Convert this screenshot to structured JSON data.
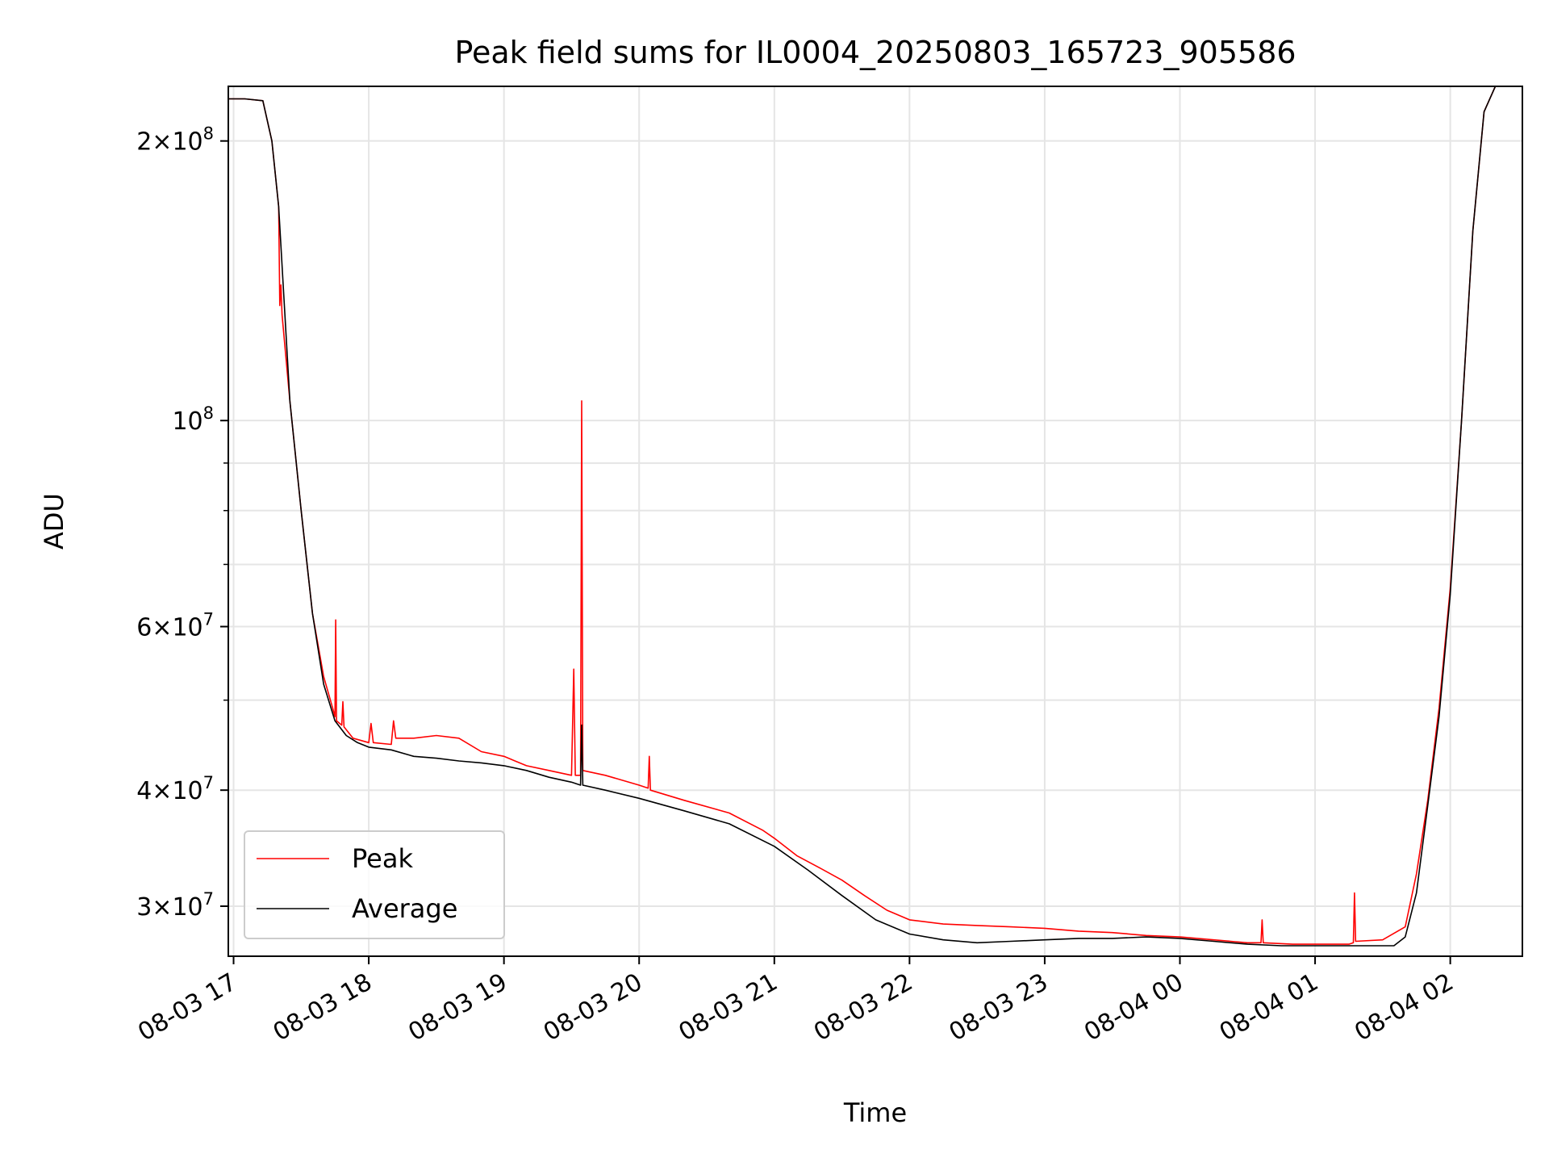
{
  "chart_data": {
    "type": "line",
    "title": "Peak field sums for IL0004_20250803_165723_905586",
    "xlabel": "Time",
    "ylabel": "ADU",
    "yscale": "log",
    "ylim": [
      26500000,
      229000000
    ],
    "xlim": [
      "2025-08-03 16:57:40",
      "2025-08-04 02:32:00"
    ],
    "x_ticks": [
      "2025-08-03 17:00",
      "2025-08-03 18:00",
      "2025-08-03 19:00",
      "2025-08-03 20:00",
      "2025-08-03 21:00",
      "2025-08-03 22:00",
      "2025-08-03 23:00",
      "2025-08-04 00:00",
      "2025-08-04 01:00",
      "2025-08-04 02:00"
    ],
    "x_tick_labels": [
      "08-03 17",
      "08-03 18",
      "08-03 19",
      "08-03 20",
      "08-03 21",
      "08-03 22",
      "08-03 23",
      "08-04 00",
      "08-04 01",
      "08-04 02"
    ],
    "y_ticks": [
      {
        "value": 200000000,
        "mantissa": "2",
        "exp": "8"
      },
      {
        "value": 100000000,
        "mantissa": "",
        "exp": "8"
      },
      {
        "value": 60000000,
        "mantissa": "6",
        "exp": "7"
      },
      {
        "value": 40000000,
        "mantissa": "4",
        "exp": "7"
      },
      {
        "value": 30000000,
        "mantissa": "3",
        "exp": "7"
      }
    ],
    "y_minor_ticks": [
      50000000,
      70000000,
      80000000,
      90000000
    ],
    "grid": true,
    "legend_position": "lower-left",
    "series": [
      {
        "name": "Peak",
        "color": "#ff0000",
        "points": [
          [
            "2025-08-03 16:57:40",
            222000000
          ],
          [
            "2025-08-03 17:05",
            222000000
          ],
          [
            "2025-08-03 17:13",
            221000000
          ],
          [
            "2025-08-03 17:17",
            200000000
          ],
          [
            "2025-08-03 17:20",
            170000000
          ],
          [
            "2025-08-03 17:20:30",
            133000000
          ],
          [
            "2025-08-03 17:21",
            140000000
          ],
          [
            "2025-08-03 17:21:30",
            130000000
          ],
          [
            "2025-08-03 17:25",
            105000000
          ],
          [
            "2025-08-03 17:30",
            80000000
          ],
          [
            "2025-08-03 17:35",
            62000000
          ],
          [
            "2025-08-03 17:40",
            53000000
          ],
          [
            "2025-08-03 17:44",
            49000000
          ],
          [
            "2025-08-03 17:45",
            48000000
          ],
          [
            "2025-08-03 17:45:20",
            61000000
          ],
          [
            "2025-08-03 17:45:40",
            47500000
          ],
          [
            "2025-08-03 17:48",
            47000000
          ],
          [
            "2025-08-03 17:48:30",
            49800000
          ],
          [
            "2025-08-03 17:49",
            46800000
          ],
          [
            "2025-08-03 17:53",
            45500000
          ],
          [
            "2025-08-03 18:00",
            45000000
          ],
          [
            "2025-08-03 18:01",
            47200000
          ],
          [
            "2025-08-03 18:02",
            45000000
          ],
          [
            "2025-08-03 18:10",
            44800000
          ],
          [
            "2025-08-03 18:11",
            47500000
          ],
          [
            "2025-08-03 18:12",
            45500000
          ],
          [
            "2025-08-03 18:20",
            45500000
          ],
          [
            "2025-08-03 18:30",
            45800000
          ],
          [
            "2025-08-03 18:40",
            45500000
          ],
          [
            "2025-08-03 18:50",
            44000000
          ],
          [
            "2025-08-03 19:00",
            43500000
          ],
          [
            "2025-08-03 19:10",
            42500000
          ],
          [
            "2025-08-03 19:20",
            42000000
          ],
          [
            "2025-08-03 19:30",
            41500000
          ],
          [
            "2025-08-03 19:31",
            54000000
          ],
          [
            "2025-08-03 19:31:40",
            41500000
          ],
          [
            "2025-08-03 19:34",
            41500000
          ],
          [
            "2025-08-03 19:34:30",
            105000000
          ],
          [
            "2025-08-03 19:35",
            42000000
          ],
          [
            "2025-08-03 19:45",
            41500000
          ],
          [
            "2025-08-03 20:00",
            40500000
          ],
          [
            "2025-08-03 20:04",
            40200000
          ],
          [
            "2025-08-03 20:04:30",
            43500000
          ],
          [
            "2025-08-03 20:05",
            40000000
          ],
          [
            "2025-08-03 20:20",
            39000000
          ],
          [
            "2025-08-03 20:40",
            37800000
          ],
          [
            "2025-08-03 20:55",
            36200000
          ],
          [
            "2025-08-03 21:00",
            35500000
          ],
          [
            "2025-08-03 21:10",
            34000000
          ],
          [
            "2025-08-03 21:20",
            33000000
          ],
          [
            "2025-08-03 21:30",
            32000000
          ],
          [
            "2025-08-03 21:40",
            30800000
          ],
          [
            "2025-08-03 21:50",
            29700000
          ],
          [
            "2025-08-03 22:00",
            29000000
          ],
          [
            "2025-08-03 22:15",
            28700000
          ],
          [
            "2025-08-03 22:30",
            28600000
          ],
          [
            "2025-08-03 22:45",
            28500000
          ],
          [
            "2025-08-03 23:00",
            28400000
          ],
          [
            "2025-08-03 23:15",
            28200000
          ],
          [
            "2025-08-03 23:30",
            28100000
          ],
          [
            "2025-08-03 23:45",
            27900000
          ],
          [
            "2025-08-04 00:00",
            27800000
          ],
          [
            "2025-08-04 00:15",
            27600000
          ],
          [
            "2025-08-04 00:30",
            27400000
          ],
          [
            "2025-08-04 00:36",
            27400000
          ],
          [
            "2025-08-04 00:36:30",
            29000000
          ],
          [
            "2025-08-04 00:37",
            27400000
          ],
          [
            "2025-08-04 00:50",
            27300000
          ],
          [
            "2025-08-04 01:05",
            27300000
          ],
          [
            "2025-08-04 01:10",
            27300000
          ],
          [
            "2025-08-04 01:15",
            27300000
          ],
          [
            "2025-08-04 01:17",
            27400000
          ],
          [
            "2025-08-04 01:17:30",
            31000000
          ],
          [
            "2025-08-04 01:18",
            27500000
          ],
          [
            "2025-08-04 01:30",
            27600000
          ],
          [
            "2025-08-04 01:40",
            28500000
          ],
          [
            "2025-08-04 01:45",
            32500000
          ],
          [
            "2025-08-04 01:50",
            39000000
          ],
          [
            "2025-08-04 01:55",
            49000000
          ],
          [
            "2025-08-04 02:00",
            66000000
          ],
          [
            "2025-08-04 02:05",
            100000000
          ],
          [
            "2025-08-04 02:10",
            160000000
          ],
          [
            "2025-08-04 02:15",
            215000000
          ],
          [
            "2025-08-04 02:20",
            229000000
          ],
          [
            "2025-08-04 02:32",
            229000000
          ]
        ]
      },
      {
        "name": "Average",
        "color": "#000000",
        "points": [
          [
            "2025-08-03 16:57:40",
            222000000
          ],
          [
            "2025-08-03 17:05",
            222000000
          ],
          [
            "2025-08-03 17:13",
            221000000
          ],
          [
            "2025-08-03 17:17",
            200000000
          ],
          [
            "2025-08-03 17:20",
            170000000
          ],
          [
            "2025-08-03 17:25",
            105000000
          ],
          [
            "2025-08-03 17:30",
            80000000
          ],
          [
            "2025-08-03 17:35",
            62000000
          ],
          [
            "2025-08-03 17:40",
            52000000
          ],
          [
            "2025-08-03 17:45",
            47500000
          ],
          [
            "2025-08-03 17:50",
            45800000
          ],
          [
            "2025-08-03 17:55",
            45000000
          ],
          [
            "2025-08-03 18:00",
            44500000
          ],
          [
            "2025-08-03 18:10",
            44200000
          ],
          [
            "2025-08-03 18:20",
            43500000
          ],
          [
            "2025-08-03 18:30",
            43300000
          ],
          [
            "2025-08-03 18:40",
            43000000
          ],
          [
            "2025-08-03 18:50",
            42800000
          ],
          [
            "2025-08-03 19:00",
            42500000
          ],
          [
            "2025-08-03 19:10",
            42000000
          ],
          [
            "2025-08-03 19:20",
            41300000
          ],
          [
            "2025-08-03 19:30",
            40800000
          ],
          [
            "2025-08-03 19:34",
            40500000
          ],
          [
            "2025-08-03 19:34:30",
            47000000
          ],
          [
            "2025-08-03 19:35",
            40500000
          ],
          [
            "2025-08-03 19:45",
            40000000
          ],
          [
            "2025-08-03 20:00",
            39200000
          ],
          [
            "2025-08-03 20:20",
            38000000
          ],
          [
            "2025-08-03 20:40",
            36800000
          ],
          [
            "2025-08-03 21:00",
            34800000
          ],
          [
            "2025-08-03 21:15",
            32800000
          ],
          [
            "2025-08-03 21:30",
            30800000
          ],
          [
            "2025-08-03 21:45",
            29000000
          ],
          [
            "2025-08-03 22:00",
            28000000
          ],
          [
            "2025-08-03 22:15",
            27600000
          ],
          [
            "2025-08-03 22:30",
            27400000
          ],
          [
            "2025-08-03 22:45",
            27500000
          ],
          [
            "2025-08-03 23:00",
            27600000
          ],
          [
            "2025-08-03 23:15",
            27700000
          ],
          [
            "2025-08-03 23:30",
            27700000
          ],
          [
            "2025-08-03 23:45",
            27800000
          ],
          [
            "2025-08-04 00:00",
            27700000
          ],
          [
            "2025-08-04 00:15",
            27500000
          ],
          [
            "2025-08-04 00:30",
            27300000
          ],
          [
            "2025-08-04 00:45",
            27200000
          ],
          [
            "2025-08-04 01:00",
            27200000
          ],
          [
            "2025-08-04 01:20",
            27200000
          ],
          [
            "2025-08-04 01:35",
            27200000
          ],
          [
            "2025-08-04 01:40",
            27800000
          ],
          [
            "2025-08-04 01:45",
            31000000
          ],
          [
            "2025-08-04 01:50",
            38500000
          ],
          [
            "2025-08-04 01:55",
            48000000
          ],
          [
            "2025-08-04 02:00",
            65000000
          ],
          [
            "2025-08-04 02:05",
            100000000
          ],
          [
            "2025-08-04 02:10",
            160000000
          ],
          [
            "2025-08-04 02:15",
            215000000
          ],
          [
            "2025-08-04 02:20",
            229000000
          ],
          [
            "2025-08-04 02:32",
            229000000
          ]
        ]
      }
    ]
  }
}
